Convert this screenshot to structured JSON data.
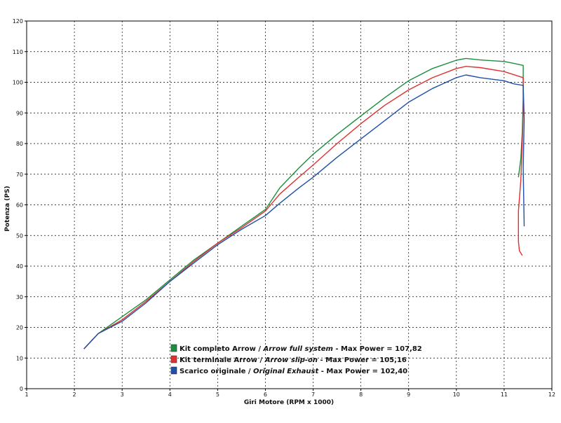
{
  "chart_data": {
    "type": "line",
    "title": "",
    "xlabel": "Giri Motore (RPM x 1000)",
    "ylabel": "Potenza (PS)",
    "xlim": [
      1,
      12
    ],
    "ylim": [
      0,
      120
    ],
    "xticks": [
      1,
      2,
      3,
      4,
      5,
      6,
      7,
      8,
      9,
      10,
      11,
      12
    ],
    "yticks": [
      0,
      10,
      20,
      30,
      40,
      50,
      60,
      70,
      80,
      90,
      100,
      110,
      120
    ],
    "grid": true,
    "legend_position": "bottom-center",
    "series": [
      {
        "name": "Kit completo Arrow",
        "name_en": "Arrow full system",
        "max_label": "Max Power",
        "max_power": "107,82",
        "color": "#1a8f3c",
        "x": [
          2.2,
          2.5,
          3.0,
          3.5,
          4.0,
          4.5,
          5.0,
          5.5,
          6.0,
          6.3,
          6.7,
          7.0,
          7.5,
          8.0,
          8.5,
          9.0,
          9.5,
          10.0,
          10.2,
          10.5,
          11.0,
          11.2,
          11.4,
          11.4,
          11.38,
          11.35,
          11.3
        ],
        "y": [
          13,
          18,
          23.5,
          29,
          35.5,
          42,
          47.5,
          53,
          58.5,
          65.5,
          72,
          76.5,
          83,
          89,
          95,
          100.5,
          104.5,
          107.2,
          107.8,
          107.3,
          106.8,
          106.2,
          105.5,
          95,
          84,
          75,
          69
        ]
      },
      {
        "name": "Kit terminale Arrow",
        "name_en": "Arrow slip-on",
        "max_label": "Max Power",
        "max_power": "105,16",
        "color": "#e03030",
        "x": [
          2.2,
          2.5,
          3.0,
          3.5,
          4.0,
          4.5,
          5.0,
          5.5,
          6.0,
          6.3,
          6.7,
          7.0,
          7.5,
          8.0,
          8.5,
          9.0,
          9.5,
          10.0,
          10.2,
          10.5,
          11.0,
          11.2,
          11.4,
          11.4,
          11.38,
          11.35,
          11.3,
          11.3,
          11.32,
          11.38
        ],
        "y": [
          13,
          18,
          22.5,
          28.5,
          35,
          41.5,
          47.5,
          52.5,
          58,
          63.5,
          69,
          73,
          80,
          86.5,
          92.5,
          97.5,
          101.5,
          104.5,
          105.2,
          104.8,
          103.5,
          102.5,
          101.5,
          92,
          80,
          68,
          58,
          48,
          45,
          43.5
        ]
      },
      {
        "name": "Scarico originale",
        "name_en": "Original Exhaust",
        "max_label": "Max Power",
        "max_power": "102,40",
        "color": "#1f4fa8",
        "x": [
          2.2,
          2.5,
          3.0,
          3.5,
          4.0,
          4.5,
          5.0,
          5.5,
          6.0,
          6.3,
          6.7,
          7.0,
          7.5,
          8.0,
          8.5,
          9.0,
          9.5,
          10.0,
          10.2,
          10.5,
          11.0,
          11.2,
          11.4,
          11.42,
          11.4,
          11.42
        ],
        "y": [
          13,
          18,
          22,
          28,
          35,
          41,
          47,
          52,
          56.5,
          60.5,
          65.5,
          69,
          75.5,
          81.5,
          87.5,
          93.5,
          98,
          101.5,
          102.4,
          101.5,
          100.5,
          99.5,
          99,
          88,
          72,
          53
        ]
      }
    ]
  }
}
